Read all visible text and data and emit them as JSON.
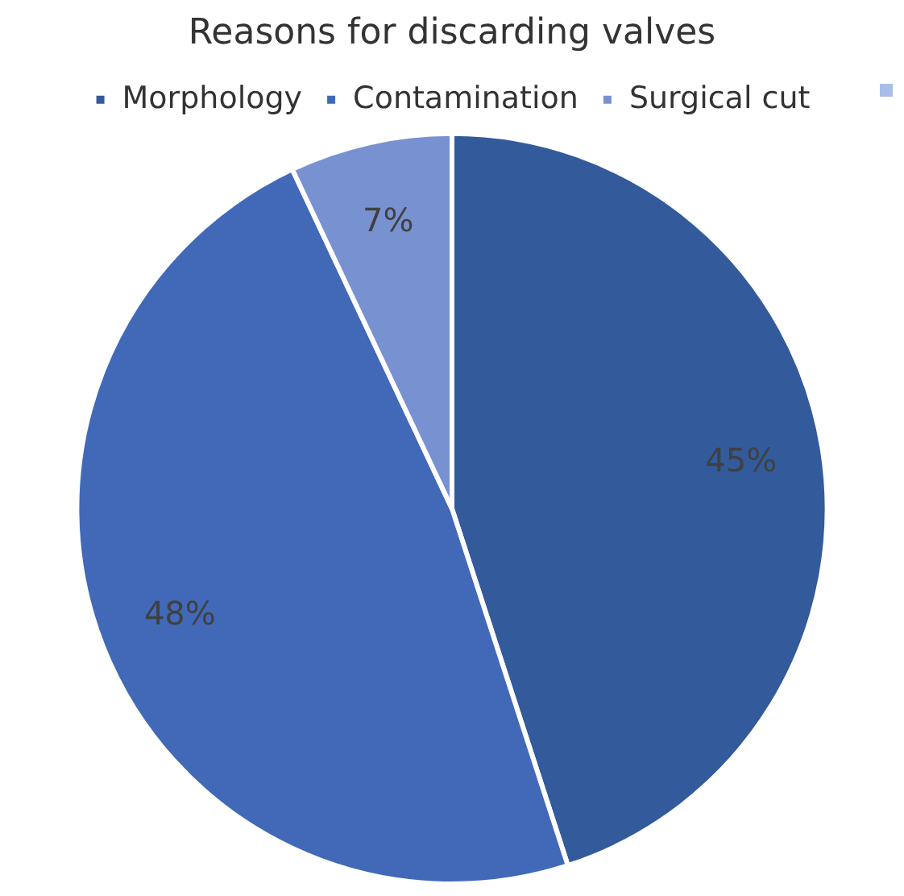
{
  "chart_data": {
    "type": "pie",
    "title": "Reasons for discarding valves",
    "categories": [
      "Morphology",
      "Contamination",
      "Surgical cut"
    ],
    "values": [
      45,
      48,
      7
    ],
    "colors": [
      "#335a9a",
      "#4169b8",
      "#7891d0"
    ],
    "value_labels": [
      "45%",
      "48%",
      "7%"
    ],
    "legend": "top"
  }
}
